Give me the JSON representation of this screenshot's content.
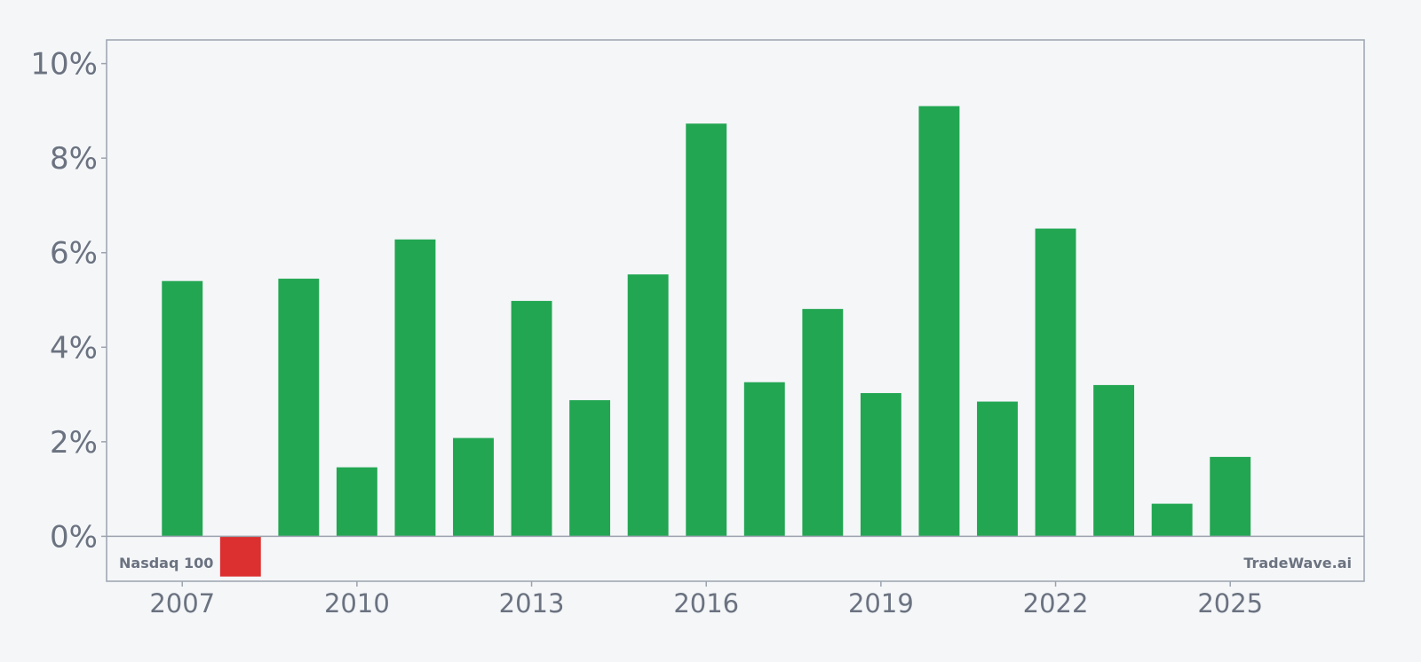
{
  "chart_data": {
    "type": "bar",
    "x": [
      2007,
      2008,
      2009,
      2010,
      2011,
      2012,
      2013,
      2014,
      2015,
      2016,
      2017,
      2018,
      2019,
      2020,
      2021,
      2022,
      2023,
      2024,
      2025
    ],
    "values": [
      5.4,
      -0.85,
      5.45,
      1.46,
      6.28,
      2.08,
      4.98,
      2.88,
      5.54,
      8.73,
      3.26,
      4.81,
      3.03,
      9.1,
      2.85,
      6.51,
      3.2,
      0.69,
      1.68
    ],
    "xlim": [
      2005.7,
      2027.3
    ],
    "ylim": [
      -0.95,
      10.5
    ],
    "yticks": [
      0,
      2,
      4,
      6,
      8,
      10
    ],
    "ytick_labels": [
      "0%",
      "2%",
      "4%",
      "6%",
      "8%",
      "10%"
    ],
    "xticks": [
      2007,
      2010,
      2013,
      2016,
      2019,
      2022,
      2025
    ],
    "xtick_labels": [
      "2007",
      "2010",
      "2013",
      "2016",
      "2019",
      "2022",
      "2025"
    ],
    "grid": false,
    "colors": {
      "positive": "#22a652",
      "negative": "#dc2f2f",
      "axis": "#9ca3af",
      "text": "#6b7280"
    }
  },
  "labels": {
    "left": "Nasdaq 100",
    "right": "TradeWave.ai"
  }
}
